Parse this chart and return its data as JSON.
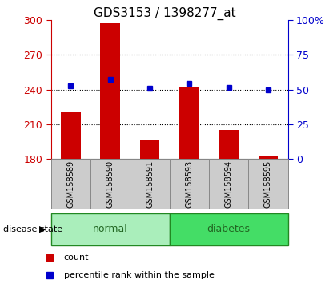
{
  "title": "GDS3153 / 1398277_at",
  "samples": [
    "GSM158589",
    "GSM158590",
    "GSM158591",
    "GSM158593",
    "GSM158594",
    "GSM158595"
  ],
  "red_values": [
    220,
    297,
    197,
    242,
    205,
    182
  ],
  "blue_values": [
    243,
    249,
    241,
    245,
    242,
    240
  ],
  "y_min": 180,
  "y_max": 300,
  "y_ticks": [
    180,
    210,
    240,
    270,
    300
  ],
  "right_y_ticks": [
    0,
    25,
    50,
    75,
    100
  ],
  "right_y_labels": [
    "0",
    "25",
    "50",
    "75",
    "100%"
  ],
  "bar_color": "#CC0000",
  "marker_color": "#0000CC",
  "left_color": "#CC0000",
  "right_color": "#0000CC",
  "bar_width": 0.5,
  "grid_levels": [
    210,
    240,
    270
  ],
  "normal_color": "#AAEEBB",
  "diabetes_color": "#44DD66",
  "tick_bg_color": "#CCCCCC",
  "group_edge_color": "#228822",
  "normal_text_color": "#226622",
  "diabetes_text_color": "#115511"
}
